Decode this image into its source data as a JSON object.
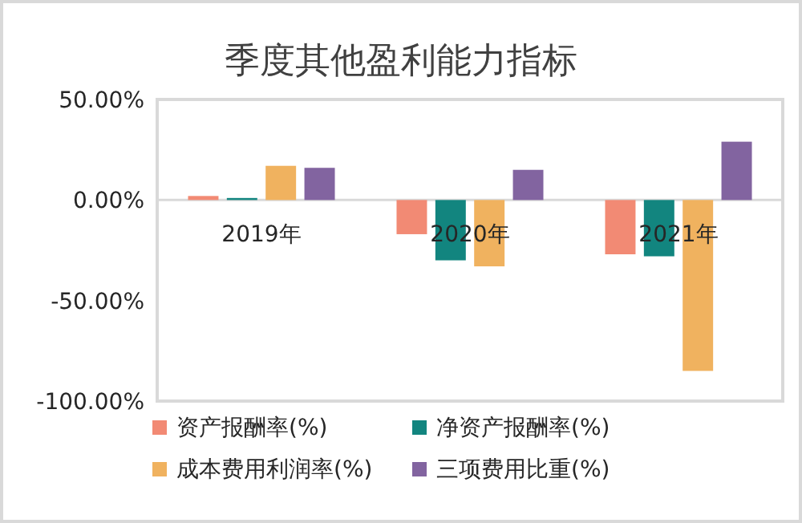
{
  "chart_data": {
    "type": "bar",
    "title": "季度其他盈利能力指标",
    "categories": [
      "2019年",
      "2020年",
      "2021年"
    ],
    "series": [
      {
        "name": "资产报酬率(%)",
        "color": "#f28a74",
        "values": [
          2,
          -17,
          -27
        ]
      },
      {
        "name": "净资产报酬率(%)",
        "color": "#12857f",
        "values": [
          1,
          -30,
          -28
        ]
      },
      {
        "name": "成本费用利润率(%)",
        "color": "#f0b25f",
        "values": [
          17,
          -33,
          -85
        ]
      },
      {
        "name": "三项费用比重(%)",
        "color": "#8264a0",
        "values": [
          16,
          15,
          29
        ]
      }
    ],
    "ylim": [
      -100,
      50
    ],
    "yticks": [
      {
        "value": -100,
        "label": "-100.00%"
      },
      {
        "value": -50,
        "label": "-50.00%"
      },
      {
        "value": 0,
        "label": "0.00%"
      },
      {
        "value": 50,
        "label": "50.00%"
      }
    ],
    "legend": "bottom"
  }
}
